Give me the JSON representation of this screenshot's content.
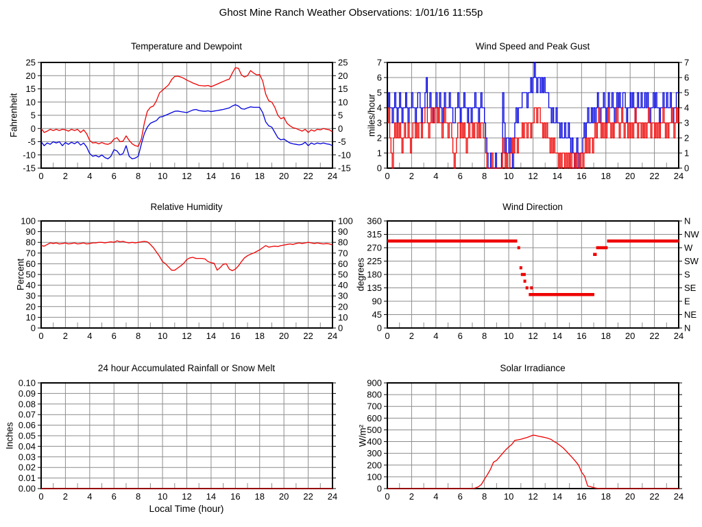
{
  "page_title": "Ghost Mine Ranch Weather Observations: 1/01/16 11:55p",
  "x_axis": {
    "min": 0,
    "max": 24,
    "tick_step": 2,
    "minor_step": 1,
    "label": "Local Time (hour)"
  },
  "colors": {
    "red": "#ee0000",
    "blue": "#0000dd",
    "grid": "#8c8c8c",
    "axis": "#000000",
    "text": "#000000",
    "background": "#ffffff"
  },
  "chart_data": [
    {
      "id": "temperature",
      "type": "line",
      "title": "Temperature and Dewpoint",
      "ylabel": "Fahrenheit",
      "ylim": [
        -15,
        25
      ],
      "ytick_step": 5,
      "ytick_decimals": 0,
      "right_labels": "mirror",
      "series": [
        {
          "name": "temperature",
          "color": "red",
          "style": "line",
          "x0": 0,
          "dx": 0.25,
          "values": [
            0,
            -1.5,
            -1,
            -0.3,
            -0.8,
            -0.3,
            -0.8,
            -0.3,
            -0.5,
            -1,
            -0.3,
            -0.8,
            -0.3,
            -1.5,
            -0.5,
            -2,
            -4.5,
            -5.5,
            -5.3,
            -5.8,
            -5.3,
            -5.8,
            -6,
            -5.5,
            -4,
            -3.5,
            -5,
            -4.8,
            -2.8,
            -4.5,
            -5.8,
            -6.5,
            -6.8,
            -4,
            2,
            6.5,
            8,
            8.5,
            10.5,
            13.5,
            14.5,
            15.5,
            16.5,
            18.5,
            19.7,
            19.8,
            19.5,
            19,
            18.3,
            17.8,
            17.2,
            16.8,
            16.3,
            16.2,
            16.1,
            16.3,
            15.8,
            16.3,
            16.8,
            17.3,
            17.8,
            18.3,
            18.7,
            21,
            23,
            22.8,
            20.3,
            19.5,
            20,
            21.9,
            21,
            20.3,
            20.4,
            18,
            13,
            10.5,
            10,
            8,
            5,
            3.7,
            4.2,
            2,
            1,
            0.3,
            0,
            -0.5,
            -1,
            -0.3,
            -1.5,
            -0.5,
            -1,
            -0.3,
            -0.5,
            0,
            -0.3,
            -0.5,
            -1.3
          ]
        },
        {
          "name": "dewpoint",
          "color": "blue",
          "style": "line",
          "x0": 0,
          "dx": 0.25,
          "values": [
            -5,
            -6.5,
            -5.5,
            -6,
            -5,
            -5.5,
            -5,
            -6.5,
            -5.3,
            -6,
            -5.2,
            -5.8,
            -5,
            -6.3,
            -5.5,
            -7,
            -9.5,
            -10.5,
            -10.2,
            -10.8,
            -10,
            -11,
            -11.5,
            -10.5,
            -8,
            -8.5,
            -10,
            -9.5,
            -6.5,
            -10.5,
            -11.5,
            -11.2,
            -10.5,
            -6,
            -2,
            0.5,
            2,
            2.5,
            3,
            4.3,
            4.5,
            5,
            5.5,
            6,
            6.5,
            6.6,
            6.4,
            6.2,
            6,
            6.5,
            7,
            7.2,
            6.8,
            6.6,
            6.5,
            6.7,
            6.4,
            6.6,
            6.8,
            7,
            7.2,
            7.5,
            7.8,
            8.5,
            9,
            8.5,
            7.5,
            7.3,
            7.8,
            8.2,
            8,
            8,
            8,
            6,
            2.5,
            1,
            0.5,
            -1.5,
            -3.5,
            -4.3,
            -4,
            -4.8,
            -5.5,
            -5.8,
            -6,
            -6.2,
            -6,
            -5.2,
            -6.5,
            -5.5,
            -6,
            -5.5,
            -5.8,
            -5.5,
            -5.8,
            -6,
            -6.5
          ]
        }
      ]
    },
    {
      "id": "wind-speed",
      "type": "line",
      "title": "Wind Speed and Peak Gust",
      "ylabel": "miles/hour",
      "ylim": [
        0,
        7
      ],
      "ytick_step": 1,
      "ytick_decimals": 0,
      "right_labels": "mirror",
      "series": [
        {
          "name": "peak-gust",
          "color": "blue",
          "style": "steps",
          "x0": 0,
          "dx": 0.1,
          "values": [
            4,
            5,
            4,
            4,
            3,
            4,
            5,
            4,
            3,
            4,
            5,
            4,
            3,
            4,
            4,
            5,
            4,
            3,
            4,
            4,
            5,
            4,
            4,
            3,
            4,
            5,
            5,
            4,
            3,
            4,
            4,
            5,
            6,
            4,
            4,
            5,
            4,
            4,
            3,
            4,
            5,
            4,
            4,
            5,
            4,
            3,
            4,
            5,
            4,
            4,
            4,
            5,
            4,
            4,
            3,
            3,
            4,
            4,
            5,
            4,
            3,
            4,
            4,
            5,
            4,
            4,
            3,
            4,
            4,
            3,
            4,
            4,
            5,
            4,
            4,
            3,
            4,
            5,
            4,
            4,
            3,
            2,
            1,
            0,
            0,
            1,
            0,
            0,
            0,
            1,
            0,
            0,
            0,
            0,
            1,
            5,
            3,
            1,
            2,
            2,
            1,
            2,
            1,
            0,
            2,
            3,
            4,
            3,
            4,
            4,
            4,
            5,
            5,
            5,
            5,
            4,
            5,
            5,
            6,
            5,
            6,
            7,
            6,
            5,
            6,
            6,
            5,
            6,
            5,
            6,
            5,
            5,
            5,
            4,
            4,
            3,
            4,
            3,
            3,
            4,
            3,
            3,
            2,
            3,
            2,
            2,
            3,
            2,
            2,
            3,
            2,
            1,
            2,
            1,
            0,
            1,
            2,
            1,
            0,
            1,
            1,
            2,
            3,
            2,
            3,
            4,
            3,
            3,
            4,
            3,
            4,
            3,
            4,
            5,
            4,
            3,
            4,
            4,
            5,
            4,
            3,
            4,
            5,
            4,
            4,
            5,
            4,
            3,
            4,
            5,
            4,
            5,
            4,
            4,
            5,
            5,
            4,
            3,
            4,
            4,
            5,
            4,
            5,
            4,
            3,
            4,
            5,
            4,
            4,
            5,
            4,
            4,
            5,
            4,
            5,
            4,
            3,
            4,
            4,
            5,
            4,
            5,
            4,
            4,
            3,
            4,
            4,
            5,
            4,
            4,
            5,
            4,
            4,
            5,
            4,
            3,
            4,
            4,
            5,
            5,
            5
          ]
        },
        {
          "name": "wind-speed",
          "color": "red",
          "style": "steps",
          "x0": 0,
          "dx": 0.1,
          "values": [
            3,
            4,
            2,
            1,
            0,
            2,
            3,
            2,
            3,
            2,
            3,
            2,
            1,
            2,
            3,
            2,
            2,
            3,
            2,
            1,
            2,
            3,
            3,
            2,
            3,
            2,
            3,
            3,
            2,
            3,
            3,
            4,
            4,
            3,
            2,
            3,
            4,
            3,
            3,
            4,
            4,
            3,
            4,
            3,
            3,
            2,
            3,
            4,
            3,
            3,
            2,
            3,
            3,
            2,
            1,
            0,
            1,
            2,
            3,
            3,
            2,
            3,
            2,
            3,
            2,
            1,
            2,
            3,
            2,
            2,
            3,
            2,
            3,
            3,
            2,
            3,
            2,
            3,
            3,
            2,
            2,
            1,
            0,
            0,
            0,
            0,
            1,
            0,
            0,
            0,
            0,
            0,
            0,
            0,
            0,
            2,
            1,
            0,
            1,
            0,
            0,
            1,
            1,
            2,
            1,
            2,
            2,
            1,
            2,
            2,
            2,
            3,
            2,
            3,
            3,
            2,
            3,
            3,
            2,
            3,
            3,
            4,
            4,
            3,
            4,
            4,
            3,
            3,
            2,
            3,
            2,
            3,
            2,
            2,
            1,
            2,
            1,
            2,
            1,
            1,
            1,
            0,
            1,
            0,
            1,
            1,
            0,
            1,
            0,
            1,
            0,
            1,
            0,
            0,
            1,
            0,
            1,
            0,
            0,
            1,
            1,
            0,
            1,
            2,
            1,
            2,
            1,
            2,
            2,
            1,
            2,
            3,
            2,
            3,
            4,
            3,
            2,
            3,
            2,
            3,
            2,
            3,
            4,
            3,
            2,
            3,
            2,
            3,
            3,
            4,
            3,
            2,
            3,
            4,
            3,
            2,
            3,
            3,
            2,
            3,
            2,
            3,
            2,
            3,
            4,
            3,
            2,
            3,
            3,
            2,
            3,
            2,
            3,
            2,
            3,
            4,
            3,
            2,
            3,
            3,
            2,
            3,
            2,
            3,
            2,
            3,
            3,
            4,
            3,
            2,
            3,
            2,
            3,
            3,
            4,
            3,
            2,
            3,
            4,
            3,
            4
          ]
        }
      ]
    },
    {
      "id": "relative-humidity",
      "type": "line",
      "title": "Relative Humidity",
      "ylabel": "Percent",
      "ylim": [
        0,
        100
      ],
      "ytick_step": 10,
      "ytick_decimals": 0,
      "right_labels": "mirror",
      "series": [
        {
          "name": "humidity",
          "color": "red",
          "style": "line",
          "x0": 0,
          "dx": 0.25,
          "values": [
            77,
            76.5,
            78,
            79.5,
            79,
            79.5,
            78.5,
            79,
            79.5,
            78.5,
            79,
            79.5,
            78.5,
            79,
            79.5,
            78.5,
            79,
            79.5,
            79.5,
            80,
            80,
            79.5,
            80,
            80.5,
            80,
            81.5,
            80.5,
            81,
            80,
            79.5,
            80,
            79.5,
            80,
            80.5,
            81,
            80.5,
            78,
            75,
            71,
            67,
            62,
            60,
            57,
            54,
            54,
            56,
            58,
            60.5,
            64,
            65.5,
            66,
            65,
            65,
            65,
            64.5,
            62,
            61,
            60.5,
            54,
            56.5,
            59.5,
            60,
            55,
            53.5,
            55,
            58,
            62,
            65.5,
            67.5,
            69,
            70,
            71.5,
            73,
            75,
            77,
            75.5,
            76,
            76.5,
            76,
            77,
            77.5,
            78,
            78.5,
            78,
            79,
            79.5,
            79,
            79.5,
            80,
            79.5,
            79,
            79.5,
            79,
            78.5,
            79,
            78.5,
            77.5
          ]
        }
      ]
    },
    {
      "id": "wind-direction",
      "type": "scatter",
      "title": "Wind Direction",
      "ylabel": "degrees",
      "ylim": [
        0,
        360
      ],
      "ytick_step": 45,
      "ytick_decimals": 0,
      "right_labels": [
        "N",
        "NW",
        "W",
        "SW",
        "S",
        "SE",
        "E",
        "NE",
        "N"
      ],
      "series": [
        {
          "name": "wind-direction",
          "color": "red",
          "style": "segments",
          "segments": [
            [
              0,
              10.7,
              292.5
            ],
            [
              10.75,
              10.9,
              270
            ],
            [
              10.95,
              11.05,
              202.5
            ],
            [
              11.0,
              11.4,
              180
            ],
            [
              11.25,
              11.4,
              157.5
            ],
            [
              11.4,
              11.6,
              135
            ],
            [
              11.8,
              11.95,
              135
            ],
            [
              11.65,
              17.05,
              112.5
            ],
            [
              16.95,
              17.25,
              247.5
            ],
            [
              17.2,
              18.15,
              270
            ],
            [
              18.1,
              24,
              292.5
            ]
          ]
        }
      ]
    },
    {
      "id": "rainfall",
      "type": "line",
      "title": "24 hour Accumulated Rainfall or Snow Melt",
      "ylabel": "Inches",
      "ylim": [
        0,
        0.1
      ],
      "ytick_step": 0.01,
      "ytick_decimals": 2,
      "right_labels": "none",
      "series": [
        {
          "name": "rainfall",
          "color": "red",
          "style": "line",
          "x0": 0,
          "dx": 24,
          "values": [
            0,
            0
          ]
        }
      ]
    },
    {
      "id": "solar",
      "type": "line",
      "title": "Solar Irradiance",
      "ylabel": "W/m²",
      "ylim": [
        0,
        900
      ],
      "ytick_step": 100,
      "ytick_decimals": 0,
      "right_labels": "none",
      "series": [
        {
          "name": "solar-irradiance",
          "color": "red",
          "style": "line",
          "x0": 0,
          "dx": 0.25,
          "values": [
            0,
            0,
            0,
            0,
            0,
            0,
            0,
            0,
            0,
            0,
            0,
            0,
            0,
            0,
            0,
            0,
            0,
            0,
            0,
            0,
            0,
            0,
            0,
            0,
            0,
            0,
            0,
            0,
            0,
            5,
            15,
            35,
            80,
            120,
            165,
            225,
            240,
            270,
            300,
            330,
            355,
            375,
            410,
            415,
            420,
            428,
            435,
            445,
            455,
            452,
            445,
            440,
            435,
            428,
            418,
            400,
            385,
            365,
            345,
            318,
            290,
            262,
            232,
            200,
            140,
            105,
            22,
            16,
            8,
            3,
            0,
            0,
            0,
            0,
            0,
            0,
            0,
            0,
            0,
            0,
            0,
            0,
            0,
            0,
            0,
            0,
            0,
            0,
            0,
            0,
            0,
            0,
            0,
            0,
            0,
            0,
            0
          ]
        }
      ]
    }
  ]
}
